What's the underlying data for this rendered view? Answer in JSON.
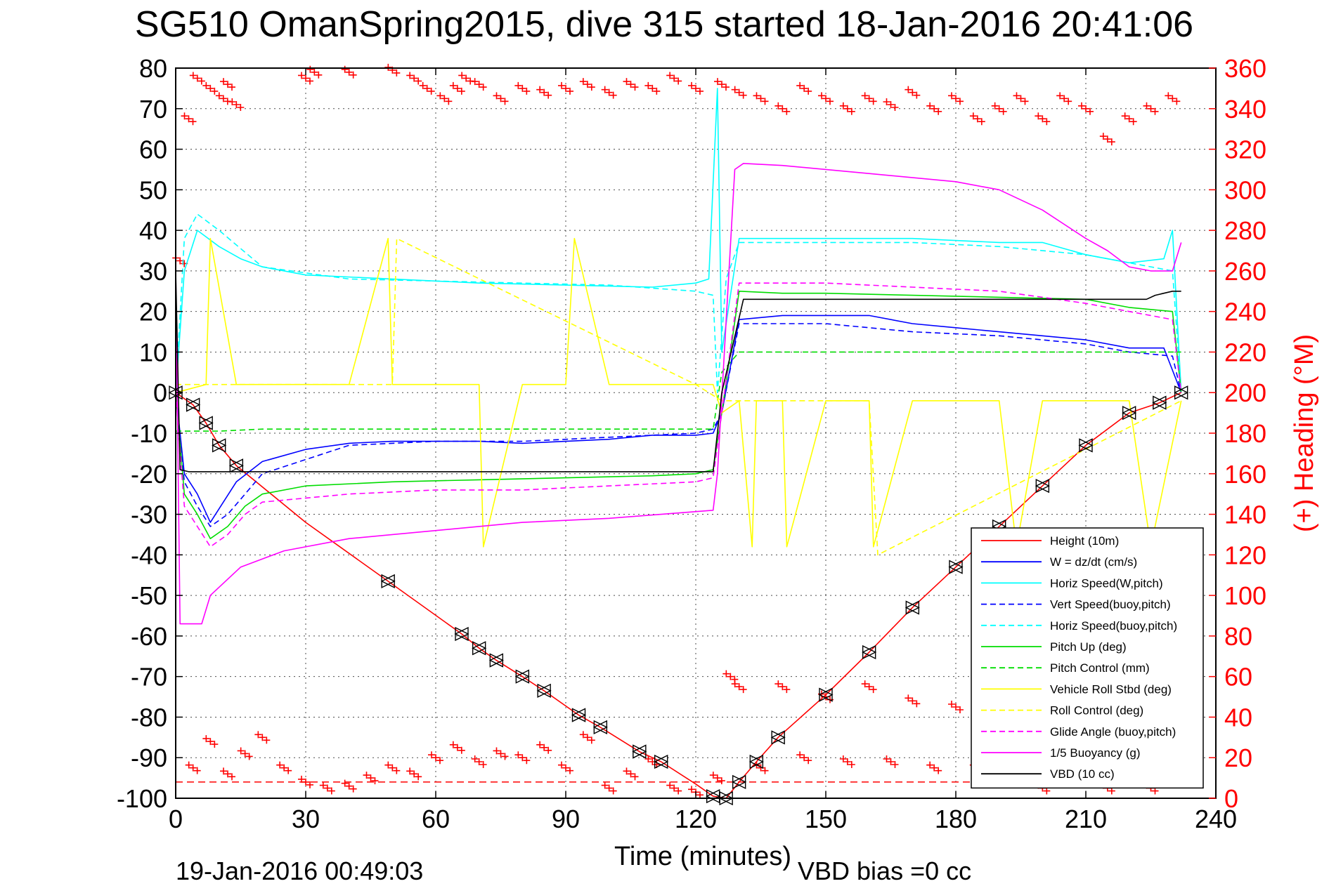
{
  "chart_data": {
    "type": "line",
    "title": "SG510 OmanSpring2015, dive 315 started 18-Jan-2016 20:41:06",
    "xlabel": "Time (minutes)",
    "ylabel": "",
    "y2label": "(+) Heading (°M)",
    "xlim": [
      0,
      240
    ],
    "ylim": [
      -100,
      80
    ],
    "y2lim": [
      0,
      360
    ],
    "xticks": [
      "0",
      "30",
      "60",
      "90",
      "120",
      "150",
      "180",
      "210",
      "240"
    ],
    "yticks": [
      "80",
      "70",
      "60",
      "50",
      "40",
      "30",
      "20",
      "10",
      "0",
      "-10",
      "-20",
      "-30",
      "-40",
      "-50",
      "-60",
      "-70",
      "-80",
      "-90",
      "-100"
    ],
    "y2ticks": [
      "360",
      "340",
      "320",
      "300",
      "280",
      "260",
      "240",
      "220",
      "200",
      "180",
      "160",
      "140",
      "120",
      "100",
      "80",
      "60",
      "40",
      "20",
      "0"
    ],
    "grid": true,
    "legend_position": "bottom-right",
    "footer_left": "19-Jan-2016 00:49:03",
    "footer_right": "VBD bias =0 cc",
    "series": [
      {
        "name": "Height (10m)",
        "color": "#ff0000",
        "style": "solid",
        "x": [
          0,
          4,
          7,
          10,
          14,
          30,
          49,
          66,
          70,
          74,
          80,
          85,
          93,
          98,
          107,
          112,
          120,
          124,
          127,
          130,
          134,
          139,
          150,
          160,
          170,
          180,
          190,
          200,
          210,
          220,
          227,
          230,
          232
        ],
        "y": [
          0,
          -3,
          -7.5,
          -13,
          -18,
          -32,
          -46.5,
          -59.5,
          -63,
          -66,
          -70,
          -73.5,
          -79.5,
          -82.5,
          -88.5,
          -91,
          -96.5,
          -99.5,
          -100,
          -96,
          -91,
          -85,
          -74.5,
          -64,
          -53,
          -43,
          -33,
          -23,
          -13,
          -5,
          -2.5,
          -1,
          0
        ]
      },
      {
        "name": "W = dz/dt (cm/s)",
        "color": "#0000ff",
        "style": "solid",
        "x": [
          0,
          1,
          2,
          5,
          8,
          11,
          14,
          20,
          30,
          40,
          50,
          60,
          70,
          80,
          90,
          100,
          110,
          120,
          124,
          126,
          130,
          140,
          150,
          160,
          170,
          180,
          190,
          200,
          210,
          220,
          228,
          232
        ],
        "y": [
          0,
          -10,
          -20,
          -25,
          -32,
          -27,
          -22,
          -17,
          -14,
          -12.5,
          -12,
          -12,
          -12,
          -12.5,
          -12,
          -11.5,
          -10.5,
          -10.5,
          -10,
          -5,
          18,
          19,
          19,
          19,
          17,
          16,
          15,
          14,
          13,
          11,
          11,
          0
        ]
      },
      {
        "name": "Horiz Speed(W,pitch)",
        "color": "#00ffff",
        "style": "solid",
        "x": [
          0,
          2,
          5,
          10,
          15,
          20,
          30,
          50,
          70,
          90,
          110,
          120,
          123,
          125,
          126,
          130,
          140,
          150,
          170,
          190,
          200,
          210,
          220,
          228,
          230,
          232
        ],
        "y": [
          0,
          30,
          40,
          36,
          33,
          31,
          29,
          28,
          27,
          26.5,
          26,
          27,
          28,
          75,
          10,
          38,
          38,
          38,
          38,
          37,
          37,
          34,
          32,
          33,
          40,
          0
        ]
      },
      {
        "name": "Vert Speed(buoy,pitch)",
        "color": "#0000ff",
        "style": "dashed",
        "x": [
          0,
          2,
          5,
          8,
          12,
          16,
          20,
          40,
          60,
          80,
          100,
          120,
          124,
          126,
          130,
          150,
          170,
          190,
          210,
          220,
          230,
          232
        ],
        "y": [
          0,
          -22,
          -28,
          -33,
          -30,
          -25,
          -20,
          -13,
          -12,
          -12,
          -11,
          -10,
          -9,
          -5,
          17,
          17,
          15,
          14,
          12,
          10,
          9,
          0
        ]
      },
      {
        "name": "Horiz Speed(buoy,pitch)",
        "color": "#00ffff",
        "style": "dashed",
        "x": [
          0,
          2,
          5,
          10,
          20,
          40,
          60,
          80,
          100,
          120,
          124,
          125,
          127,
          130,
          150,
          170,
          190,
          210,
          220,
          230,
          232
        ],
        "y": [
          0,
          38,
          44,
          40,
          31,
          28,
          27.5,
          27,
          26.5,
          25,
          24,
          0,
          28,
          37,
          37,
          37,
          36,
          34,
          32,
          30,
          0
        ]
      },
      {
        "name": "Pitch Up (deg)",
        "color": "#00dd00",
        "style": "solid",
        "x": [
          0,
          2,
          5,
          8,
          12,
          16,
          20,
          30,
          50,
          70,
          90,
          110,
          120,
          124,
          126,
          130,
          140,
          150,
          170,
          190,
          210,
          220,
          230,
          232
        ],
        "y": [
          0,
          -25,
          -30,
          -36,
          -33,
          -28,
          -25,
          -23,
          -22,
          -21.5,
          -21,
          -20.5,
          -20,
          -19,
          -5,
          25,
          24.5,
          24.5,
          24,
          23.5,
          23,
          21,
          20,
          0
        ]
      },
      {
        "name": "Pitch Control (mm)",
        "color": "#00dd00",
        "style": "dashed",
        "x": [
          0,
          5,
          10,
          20,
          60,
          120,
          124,
          126,
          130,
          150,
          180,
          210,
          232
        ],
        "y": [
          -9.5,
          -9.5,
          -9.5,
          -9,
          -9,
          -9,
          -9,
          5,
          10,
          10,
          10,
          10,
          10
        ]
      },
      {
        "name": "Vehicle Roll Stbd (deg)",
        "color": "#ffff00",
        "style": "solid",
        "x": [
          0,
          7,
          8,
          14,
          15,
          40,
          49,
          50,
          70,
          71,
          80,
          90,
          92,
          100,
          120,
          124,
          126,
          130,
          133,
          134,
          140,
          141,
          150,
          160,
          161,
          170,
          180,
          190,
          194,
          200,
          210,
          220,
          225,
          232
        ],
        "y": [
          0,
          2,
          38,
          2,
          2,
          2,
          38,
          2,
          2,
          -38,
          2,
          2,
          38,
          2,
          2,
          2,
          -5,
          -2,
          -38,
          -2,
          -2,
          -38,
          -2,
          -2,
          -38,
          -2,
          -2,
          -2,
          -38,
          -2,
          -2,
          -2,
          -38,
          -2
        ]
      },
      {
        "name": "Roll Control (deg)",
        "color": "#ffff00",
        "style": "dashed",
        "x": [
          0,
          50,
          51,
          120,
          126,
          160,
          162,
          232
        ],
        "y": [
          2,
          2,
          38,
          2,
          -2,
          -2,
          -40,
          -2
        ]
      },
      {
        "name": "Glide Angle (buoy,pitch)",
        "color": "#ff00ff",
        "style": "dashed",
        "x": [
          0,
          2,
          5,
          8,
          12,
          16,
          20,
          40,
          60,
          80,
          100,
          120,
          124,
          126,
          130,
          150,
          170,
          190,
          210,
          220,
          230,
          232
        ],
        "y": [
          0,
          -28,
          -33,
          -38,
          -35,
          -30,
          -27,
          -25,
          -24,
          -24,
          -23,
          -22,
          -21,
          -5,
          27,
          27,
          26,
          25,
          22,
          20,
          18,
          0
        ]
      },
      {
        "name": "1/5 Buoyancy (g)",
        "color": "#ff00ff",
        "style": "solid",
        "x": [
          0,
          1,
          2,
          6,
          8,
          15,
          25,
          40,
          60,
          80,
          100,
          124,
          125,
          129,
          131,
          140,
          160,
          180,
          190,
          200,
          210,
          215,
          220,
          225,
          230,
          232
        ],
        "y": [
          30,
          -57,
          -57,
          -57,
          -50,
          -43,
          -39,
          -36,
          -34,
          -32,
          -31,
          -29,
          -20,
          55,
          56.5,
          56,
          54,
          52,
          50,
          45,
          38,
          35,
          31,
          30,
          30,
          37
        ]
      },
      {
        "name": "VBD (10 cc)",
        "color": "#000000",
        "style": "solid",
        "x": [
          0,
          1,
          3,
          60,
          120,
          124,
          126,
          131,
          150,
          180,
          200,
          224,
          226,
          230,
          232
        ],
        "y": [
          30,
          -19,
          -19.5,
          -19.5,
          -19.5,
          -19.5,
          0,
          23,
          23,
          23,
          23,
          23,
          24,
          25,
          25
        ]
      }
    ],
    "heading": {
      "name": "(+) Heading (°M)",
      "color": "#ff0000",
      "marker": "+",
      "top_cluster_x": [
        1,
        3,
        5,
        8,
        11,
        12,
        14,
        30,
        32,
        40,
        50,
        55,
        58,
        62,
        65,
        67,
        70,
        75,
        80,
        85,
        90,
        95,
        100,
        105,
        110,
        115,
        120,
        126,
        130,
        135,
        140,
        145,
        150,
        155,
        160,
        165,
        170,
        175,
        180,
        185,
        190,
        195,
        200,
        205,
        210,
        215,
        220,
        225,
        230
      ],
      "top_cluster_y": [
        265,
        335,
        355,
        350,
        345,
        352,
        342,
        355,
        358,
        358,
        359,
        355,
        350,
        345,
        350,
        355,
        352,
        345,
        350,
        348,
        350,
        352,
        348,
        352,
        350,
        355,
        350,
        352,
        348,
        345,
        340,
        350,
        345,
        340,
        345,
        342,
        348,
        340,
        345,
        335,
        340,
        345,
        335,
        345,
        340,
        325,
        335,
        340,
        345
      ],
      "bottom_cluster_x": [
        4,
        8,
        12,
        16,
        20,
        25,
        30,
        35,
        40,
        45,
        50,
        55,
        60,
        65,
        70,
        75,
        80,
        85,
        90,
        95,
        100,
        105,
        110,
        115,
        120,
        125,
        128,
        130,
        135,
        140,
        145,
        150,
        155,
        160,
        165,
        170,
        175,
        180,
        185,
        190,
        195,
        200,
        205,
        210,
        215,
        220,
        225,
        230
      ],
      "bottom_cluster_y": [
        15,
        28,
        12,
        22,
        30,
        15,
        8,
        5,
        6,
        10,
        15,
        12,
        20,
        25,
        18,
        22,
        20,
        25,
        15,
        30,
        5,
        12,
        18,
        5,
        3,
        10,
        60,
        55,
        15,
        55,
        20,
        50,
        18,
        55,
        18,
        48,
        15,
        45,
        15,
        45,
        12,
        5,
        10,
        15,
        5,
        12,
        5,
        8
      ],
      "reference_line_y": 8
    },
    "dive_markers": {
      "x": [
        0,
        4,
        7,
        10,
        14,
        49,
        66,
        70,
        74,
        80,
        85,
        93,
        98,
        107,
        112,
        124,
        127,
        130,
        134,
        139,
        150,
        160,
        170,
        180,
        190,
        200,
        210,
        220,
        227,
        232
      ],
      "y": [
        0,
        -3,
        -7.5,
        -13,
        -18,
        -46.5,
        -59.5,
        -63,
        -66,
        -70,
        -73.5,
        -79.5,
        -82.5,
        -88.5,
        -91,
        -99.5,
        -100,
        -96,
        -91,
        -85,
        -74.5,
        -64,
        -53,
        -43,
        -33,
        -23,
        -13,
        -5,
        -2.5,
        0
      ]
    }
  }
}
